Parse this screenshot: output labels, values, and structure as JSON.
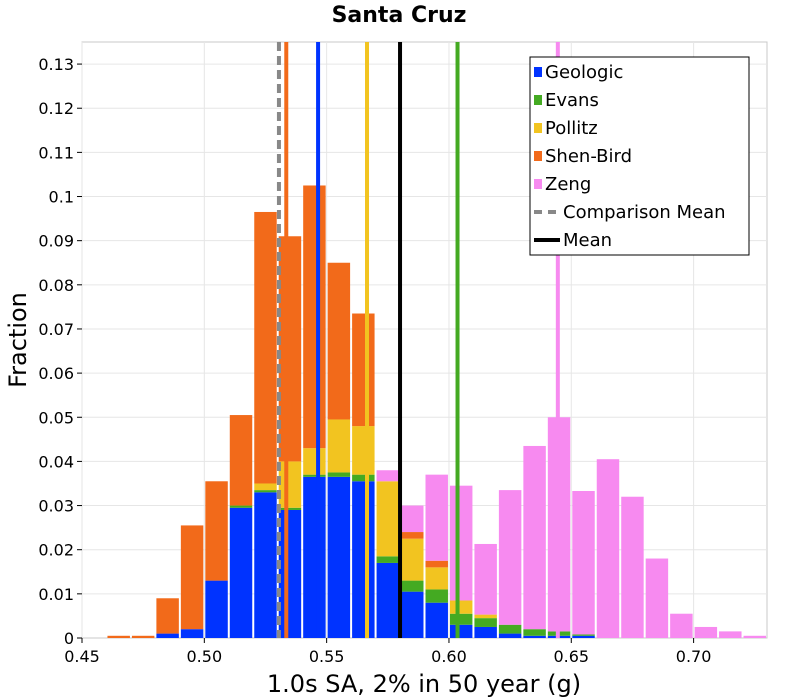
{
  "chart_data": {
    "type": "bar",
    "stacked": true,
    "title": "Santa Cruz",
    "xlabel": "1.0s SA, 2% in 50 year (g)",
    "ylabel": "Fraction",
    "xlim": [
      0.45,
      0.73
    ],
    "ylim": [
      0,
      0.135
    ],
    "grid": true,
    "legend_position": "top-right",
    "bin_width": 0.01,
    "bin_centers": [
      0.465,
      0.475,
      0.485,
      0.495,
      0.505,
      0.515,
      0.525,
      0.535,
      0.545,
      0.555,
      0.565,
      0.575,
      0.585,
      0.595,
      0.605,
      0.615,
      0.625,
      0.635,
      0.645,
      0.655,
      0.665,
      0.675,
      0.685,
      0.695,
      0.705,
      0.715,
      0.725
    ],
    "x_ticks": [
      "0.45",
      "0.50",
      "0.55",
      "0.60",
      "0.65",
      "0.70"
    ],
    "x_tick_values": [
      0.45,
      0.5,
      0.55,
      0.6,
      0.65,
      0.7
    ],
    "y_ticks": [
      "0",
      "0.01",
      "0.02",
      "0.03",
      "0.04",
      "0.05",
      "0.06",
      "0.07",
      "0.08",
      "0.09",
      "0.1",
      "0.11",
      "0.12",
      "0.13"
    ],
    "y_tick_values": [
      0,
      0.01,
      0.02,
      0.03,
      0.04,
      0.05,
      0.06,
      0.07,
      0.08,
      0.09,
      0.1,
      0.11,
      0.12,
      0.13
    ],
    "series": [
      {
        "name": "Geologic",
        "color": "#0033ff",
        "values": [
          0,
          0,
          0.001,
          0.002,
          0.013,
          0.0295,
          0.033,
          0.029,
          0.0365,
          0.0365,
          0.0355,
          0.017,
          0.0105,
          0.008,
          0.003,
          0.0025,
          0.001,
          0.0005,
          0.0005,
          0.0005,
          0,
          0,
          0,
          0,
          0,
          0,
          0
        ]
      },
      {
        "name": "Evans",
        "color": "#44aa22",
        "values": [
          0,
          0,
          0,
          0,
          0,
          0.0005,
          0.0005,
          0.0005,
          0.0005,
          0.001,
          0.0015,
          0.0015,
          0.0025,
          0.003,
          0.0025,
          0.002,
          0.002,
          0.0015,
          0.001,
          0.0003,
          0,
          0,
          0,
          0,
          0,
          0,
          0
        ]
      },
      {
        "name": "Pollitz",
        "color": "#f2c420",
        "values": [
          0,
          0,
          0,
          0,
          0,
          0,
          0.0015,
          0.0105,
          0.006,
          0.012,
          0.011,
          0.017,
          0.0095,
          0.005,
          0.003,
          0.0008,
          0,
          0,
          0,
          0,
          0,
          0,
          0,
          0,
          0,
          0,
          0
        ]
      },
      {
        "name": "Shen-Bird",
        "color": "#f26a1a",
        "values": [
          0.0005,
          0.0005,
          0.008,
          0.0235,
          0.0225,
          0.0205,
          0.0615,
          0.051,
          0.0595,
          0.0355,
          0.0255,
          0,
          0.0015,
          0.0015,
          0,
          0,
          0,
          0,
          0,
          0,
          0,
          0,
          0,
          0,
          0,
          0,
          0
        ]
      },
      {
        "name": "Zeng",
        "color": "#f78af0",
        "values": [
          0,
          0,
          0,
          0,
          0,
          0,
          0,
          0,
          0,
          0,
          0,
          0.0025,
          0.006,
          0.0195,
          0.026,
          0.016,
          0.0305,
          0.0415,
          0.0485,
          0.0325,
          0.0405,
          0.032,
          0.018,
          0.0055,
          0.0025,
          0.0015,
          0.0005
        ]
      }
    ],
    "vertical_lines": [
      {
        "series": "Geologic",
        "x": 0.5465,
        "color": "#0033ff",
        "style": "solid"
      },
      {
        "series": "Evans",
        "x": 0.6035,
        "color": "#44aa22",
        "style": "solid"
      },
      {
        "series": "Pollitz",
        "x": 0.5665,
        "color": "#f2c420",
        "style": "solid"
      },
      {
        "series": "Shen-Bird",
        "x": 0.5335,
        "color": "#f26a1a",
        "style": "solid"
      },
      {
        "series": "Zeng",
        "x": 0.6445,
        "color": "#f78af0",
        "style": "solid"
      },
      {
        "series": "Comparison Mean",
        "x": 0.5305,
        "color": "#888888",
        "style": "dashed"
      },
      {
        "series": "Mean",
        "x": 0.58,
        "color": "#000000",
        "style": "solid"
      }
    ],
    "legend": [
      {
        "label": "Geologic",
        "kind": "box",
        "color": "#0033ff"
      },
      {
        "label": "Evans",
        "kind": "box",
        "color": "#44aa22"
      },
      {
        "label": "Pollitz",
        "kind": "box",
        "color": "#f2c420"
      },
      {
        "label": "Shen-Bird",
        "kind": "box",
        "color": "#f26a1a"
      },
      {
        "label": "Zeng",
        "kind": "box",
        "color": "#f78af0"
      },
      {
        "label": "Comparison Mean",
        "kind": "dashed",
        "color": "#888888"
      },
      {
        "label": "Mean",
        "kind": "line",
        "color": "#000000"
      }
    ]
  }
}
